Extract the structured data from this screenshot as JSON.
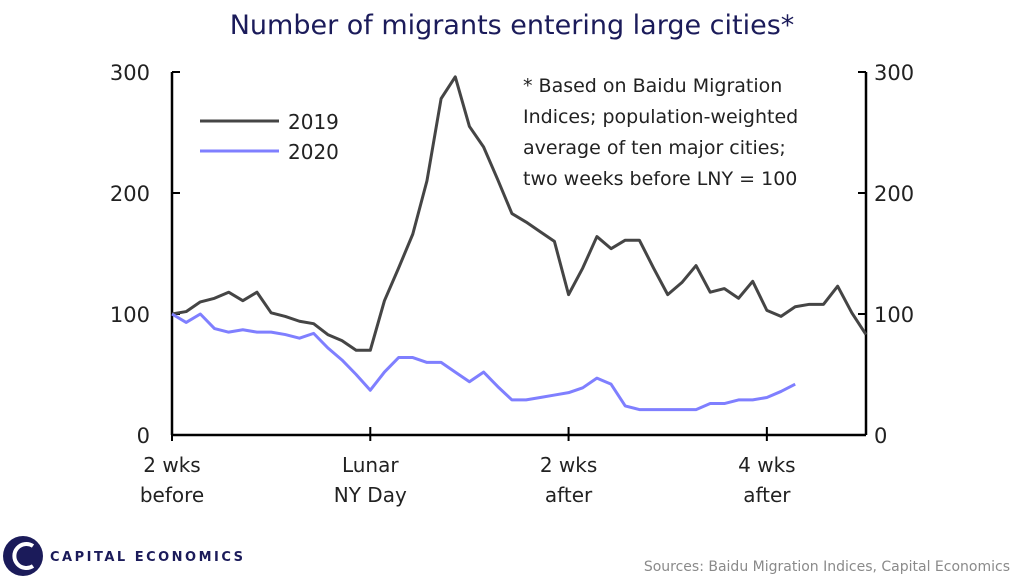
{
  "chart_data": {
    "type": "line",
    "title": "Number of migrants entering large cities*",
    "annotation": [
      "* Based on  Baidu Migration",
      "Indices;  population-weighted",
      "average of ten major cities;",
      "two weeks before LNY = 100"
    ],
    "x_ticks": [
      {
        "day": -14,
        "label": [
          "2 wks",
          "before"
        ]
      },
      {
        "day": 0,
        "label": [
          "Lunar",
          "NY Day"
        ]
      },
      {
        "day": 14,
        "label": [
          "2 wks",
          "after"
        ]
      },
      {
        "day": 28,
        "label": [
          "4 wks",
          "after"
        ]
      }
    ],
    "xlim": [
      -14,
      35
    ],
    "ylim": [
      0,
      300
    ],
    "y_ticks": [
      0,
      100,
      200,
      300
    ],
    "y_ticks_right": [
      0,
      100,
      200,
      300
    ],
    "grid": false,
    "legend_placement": "top-left",
    "series": [
      {
        "name": "2019",
        "color": "#454545",
        "x_start": -14,
        "values": [
          100,
          102,
          110,
          113,
          118,
          111,
          118,
          101,
          98,
          94,
          92,
          83,
          78,
          70,
          70,
          111,
          138,
          166,
          210,
          278,
          296,
          255,
          238,
          211,
          183,
          176,
          168,
          160,
          116,
          138,
          164,
          154,
          161,
          161,
          138,
          116,
          126,
          140,
          118,
          121,
          113,
          127,
          103,
          98,
          106,
          108,
          108,
          123,
          101,
          83
        ]
      },
      {
        "name": "2020",
        "color": "#7f7fff",
        "x_start": -14,
        "values": [
          100,
          93,
          100,
          88,
          85,
          87,
          85,
          85,
          83,
          80,
          84,
          72,
          62,
          50,
          37,
          52,
          64,
          64,
          60,
          60,
          52,
          44,
          52,
          40,
          29,
          29,
          31,
          33,
          35,
          39,
          47,
          42,
          24,
          21,
          21,
          21,
          21,
          21,
          26,
          26,
          29,
          29,
          31,
          36,
          42
        ]
      }
    ]
  },
  "footer": {
    "logo_text": "CAPITAL ECONOMICS",
    "sources": "Sources: Baidu Migration Indices, Capital Economics"
  }
}
